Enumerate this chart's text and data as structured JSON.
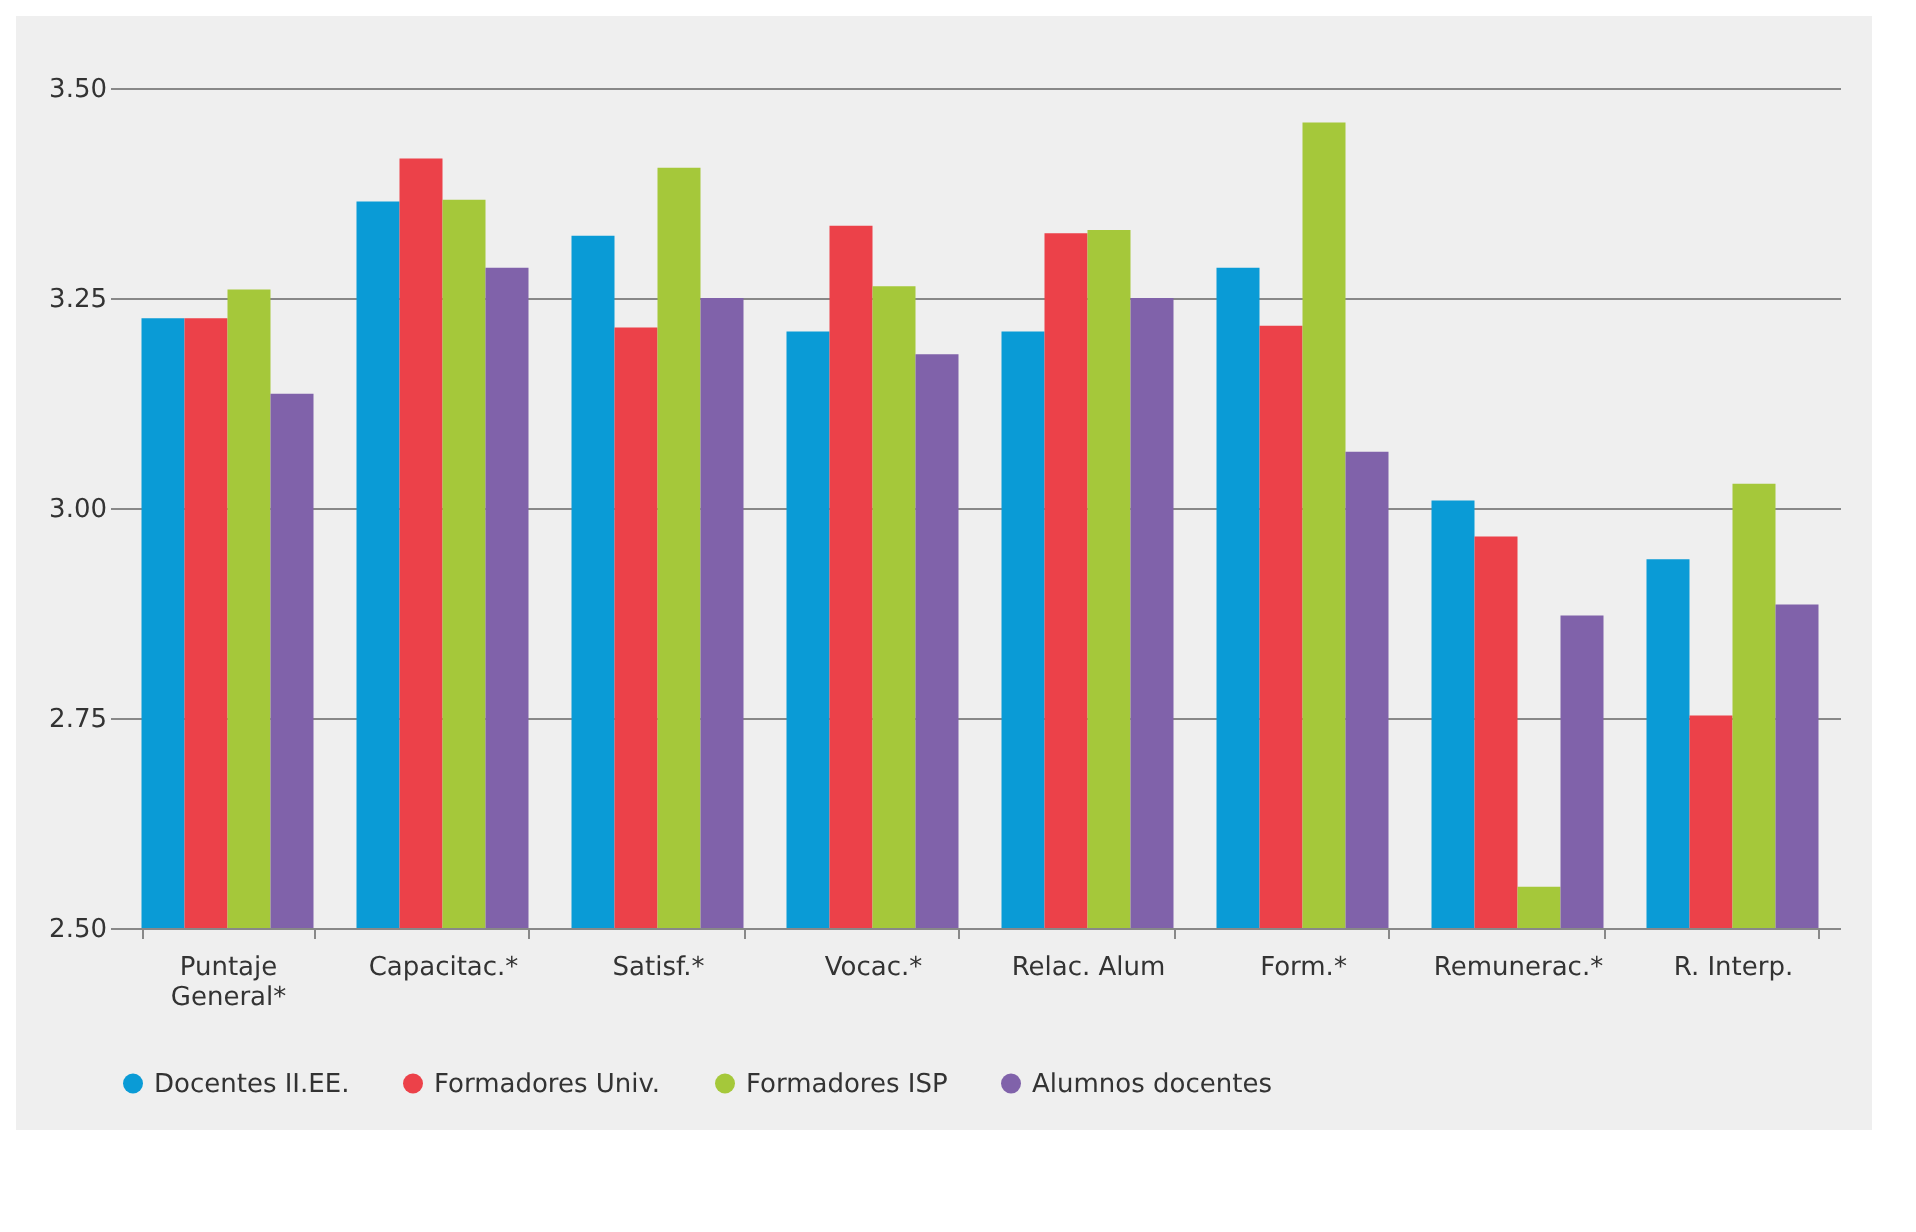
{
  "chart_data": {
    "type": "bar",
    "categories": [
      "Puntaje General*",
      "Capacitac.*",
      "Satisf.*",
      "Vocac.*",
      "Relac. Alum",
      "Form.*",
      "Remunerac.*",
      "R. Interp."
    ],
    "series": [
      {
        "name": "Docentes II.EE.",
        "color": "#0a9bd6",
        "values": [
          3.226,
          3.365,
          3.324,
          3.21,
          3.21,
          3.286,
          3.009,
          2.939
        ]
      },
      {
        "name": "Formadores Univ.",
        "color": "#ec4149",
        "values": [
          3.226,
          3.416,
          3.215,
          3.336,
          3.327,
          3.217,
          2.966,
          2.753
        ]
      },
      {
        "name": "Formadores ISP",
        "color": "#a5c83a",
        "values": [
          3.26,
          3.367,
          3.405,
          3.264,
          3.331,
          3.459,
          2.549,
          3.029
        ]
      },
      {
        "name": "Alumnos docentes",
        "color": "#8062aa",
        "values": [
          3.136,
          3.286,
          3.25,
          3.183,
          3.25,
          3.067,
          2.872,
          2.885
        ]
      }
    ],
    "ylim": [
      2.5,
      3.5
    ],
    "yticks": [
      {
        "value": 2.5,
        "label": "2.50"
      },
      {
        "value": 2.75,
        "label": "2.75"
      },
      {
        "value": 3,
        "label": "3.00"
      },
      {
        "value": 3.25,
        "label": "3.25"
      },
      {
        "value": 3.5,
        "label": "3.50"
      }
    ],
    "grid": "y",
    "legend": "bottom"
  }
}
